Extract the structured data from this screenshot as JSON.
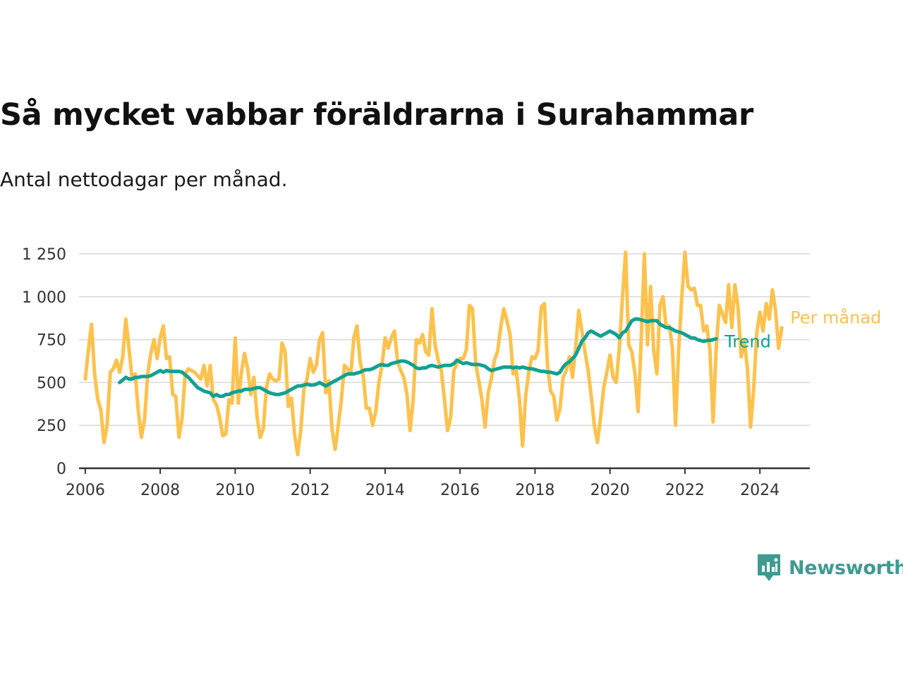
{
  "colors": {
    "monthly": "#fdc24d",
    "trend": "#14a092",
    "grid": "#d9d9d9",
    "axis": "#333333",
    "brand": "#3f9a90"
  },
  "brand": {
    "name": "Newsworthy",
    "icon": "newsworthy-logo-icon"
  },
  "chart_data": {
    "type": "line",
    "title": "Så mycket vabbar föräldrarna i Surahammar",
    "subtitle": "Antal nettodagar per månad.",
    "xlabel": "",
    "ylabel": "",
    "xlim": [
      "2005-11",
      "2025-05"
    ],
    "ylim": [
      0,
      1250
    ],
    "yticks": [
      0,
      250,
      500,
      750,
      1000,
      1250
    ],
    "ytick_labels": [
      "0",
      "250",
      "500",
      "750",
      "1 000",
      "1 250"
    ],
    "xticks": [
      "2006-01",
      "2008-01",
      "2010-01",
      "2012-01",
      "2014-01",
      "2016-01",
      "2018-01",
      "2020-01",
      "2022-01",
      "2024-01"
    ],
    "xtick_labels": [
      "2006",
      "2008",
      "2010",
      "2012",
      "2014",
      "2016",
      "2018",
      "2020",
      "2022",
      "2024"
    ],
    "grid": true,
    "legend": "inline-end-labels",
    "start_month": "2006-01",
    "series": [
      {
        "name": "Per månad",
        "color": "#fdc24d",
        "values": [
          520,
          690,
          840,
          550,
          400,
          340,
          150,
          250,
          560,
          580,
          630,
          560,
          650,
          870,
          700,
          520,
          550,
          330,
          180,
          290,
          550,
          670,
          750,
          640,
          760,
          830,
          640,
          650,
          430,
          420,
          180,
          290,
          550,
          580,
          570,
          560,
          540,
          520,
          600,
          480,
          600,
          400,
          370,
          300,
          190,
          200,
          400,
          380,
          760,
          380,
          560,
          670,
          580,
          430,
          530,
          300,
          180,
          230,
          470,
          550,
          520,
          510,
          520,
          730,
          680,
          360,
          410,
          200,
          80,
          220,
          460,
          520,
          640,
          560,
          600,
          750,
          790,
          440,
          510,
          230,
          110,
          250,
          400,
          600,
          580,
          550,
          760,
          830,
          620,
          540,
          350,
          350,
          250,
          330,
          500,
          600,
          760,
          700,
          760,
          800,
          620,
          570,
          530,
          430,
          220,
          400,
          750,
          730,
          780,
          680,
          660,
          930,
          720,
          630,
          570,
          400,
          220,
          300,
          570,
          610,
          640,
          640,
          690,
          950,
          930,
          610,
          510,
          400,
          240,
          440,
          520,
          630,
          680,
          820,
          930,
          860,
          780,
          550,
          570,
          400,
          130,
          420,
          560,
          650,
          640,
          690,
          940,
          960,
          600,
          450,
          420,
          280,
          350,
          530,
          570,
          650,
          530,
          700,
          920,
          800,
          680,
          570,
          420,
          250,
          150,
          300,
          470,
          560,
          660,
          530,
          500,
          700,
          1000,
          1260,
          720,
          680,
          550,
          330,
          750,
          1250,
          720,
          1060,
          690,
          550,
          950,
          1000,
          820,
          830,
          700,
          250,
          700,
          1000,
          1260,
          1060,
          1040,
          1050,
          950,
          950,
          800,
          830,
          690,
          270,
          700,
          950,
          900,
          850,
          1070,
          820,
          1070,
          940,
          650,
          750,
          580,
          240,
          460,
          790,
          910,
          800,
          960,
          870,
          1040,
          920,
          700,
          820
        ]
      },
      {
        "name": "Trend",
        "color": "#14a092",
        "start_index": 11,
        "values": [
          500,
          515,
          530,
          520,
          520,
          530,
          530,
          535,
          535,
          535,
          540,
          550,
          560,
          570,
          560,
          570,
          565,
          565,
          565,
          565,
          560,
          545,
          530,
          510,
          490,
          470,
          460,
          450,
          445,
          440,
          420,
          430,
          420,
          420,
          430,
          430,
          440,
          445,
          450,
          450,
          460,
          460,
          460,
          465,
          470,
          470,
          460,
          450,
          440,
          435,
          430,
          430,
          435,
          440,
          450,
          460,
          470,
          480,
          480,
          485,
          490,
          485,
          485,
          490,
          500,
          490,
          480,
          490,
          500,
          510,
          520,
          530,
          540,
          550,
          550,
          550,
          555,
          560,
          570,
          575,
          575,
          580,
          590,
          600,
          605,
          600,
          600,
          610,
          615,
          620,
          625,
          625,
          620,
          610,
          600,
          585,
          580,
          585,
          585,
          595,
          600,
          595,
          590,
          595,
          600,
          600,
          600,
          610,
          630,
          620,
          610,
          615,
          610,
          605,
          605,
          605,
          600,
          595,
          580,
          570,
          575,
          580,
          585,
          590,
          590,
          590,
          585,
          590,
          585,
          590,
          585,
          580,
          580,
          575,
          570,
          565,
          565,
          560,
          560,
          555,
          550,
          560,
          590,
          610,
          620,
          640,
          660,
          700,
          740,
          760,
          790,
          800,
          790,
          780,
          770,
          780,
          790,
          800,
          790,
          780,
          760,
          790,
          800,
          830,
          860,
          870,
          870,
          865,
          860,
          855,
          860,
          860,
          860,
          840,
          830,
          820,
          820,
          810,
          800,
          795,
          790,
          780,
          770,
          760,
          760,
          750,
          745,
          740,
          745,
          745,
          750,
          755
        ]
      }
    ]
  }
}
